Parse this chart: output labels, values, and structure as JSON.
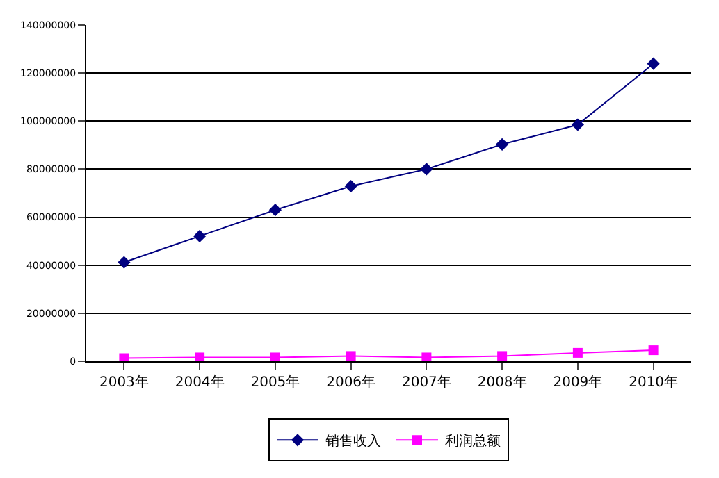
{
  "chart_data": {
    "type": "line",
    "categories": [
      "2003年",
      "2004年",
      "2005年",
      "2006年",
      "2007年",
      "2008年",
      "2009年",
      "2010年"
    ],
    "series": [
      {
        "name": "销售收入",
        "color": "#000080",
        "marker": "diamond",
        "values": [
          41200000,
          52100000,
          63000000,
          72900000,
          80000000,
          90300000,
          98500000,
          123900000
        ]
      },
      {
        "name": "利润总额",
        "color": "#ff00ff",
        "marker": "square",
        "values": [
          1300000,
          1600000,
          1600000,
          2200000,
          1600000,
          2200000,
          3500000,
          4600000
        ]
      }
    ],
    "ylim": [
      0,
      140000000
    ],
    "yticks": [
      0,
      20000000,
      40000000,
      60000000,
      80000000,
      100000000,
      120000000,
      140000000
    ],
    "grid": "y",
    "legend": "bottom",
    "line_style": "solid"
  }
}
